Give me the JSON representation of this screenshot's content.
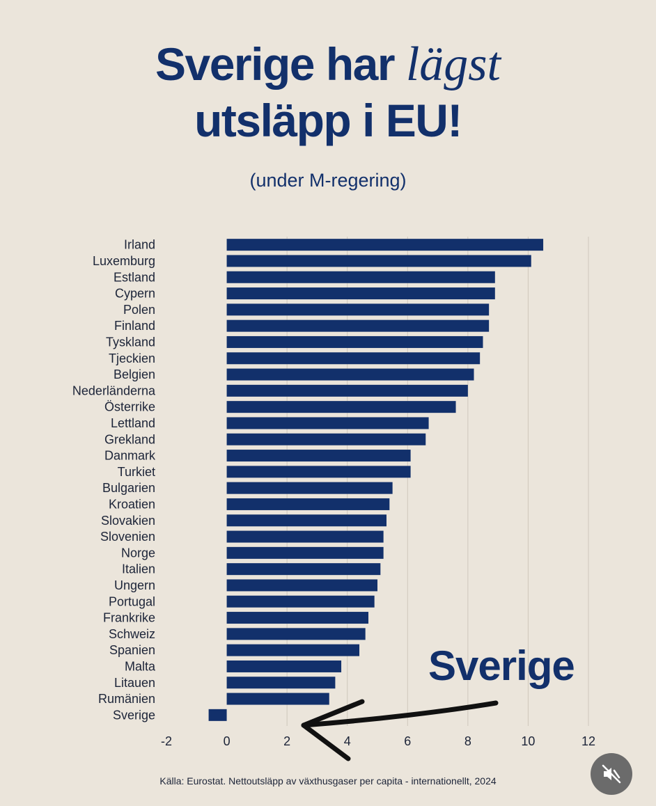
{
  "header": {
    "title_part1": "Sverige har ",
    "title_emph": "lägst",
    "title_part2": "utsläpp i EU!",
    "subtitle": "(under M-regering)"
  },
  "callout": {
    "label": "Sverige"
  },
  "footer": {
    "source": "Källa: Eurostat. Nettoutsläpp av växthusgaser per capita - internationellt, 2024"
  },
  "controls": {
    "mute_icon": "speaker-muted-icon"
  },
  "colors": {
    "bar": "#12306b",
    "background": "#ebe5db",
    "grid": "#cfc8bc",
    "text": "#1c2438"
  },
  "chart_data": {
    "type": "bar",
    "orientation": "horizontal",
    "categories": [
      "Irland",
      "Luxemburg",
      "Estland",
      "Cypern",
      "Polen",
      "Finland",
      "Tyskland",
      "Tjeckien",
      "Belgien",
      "Nederländerna",
      "Österrike",
      "Lettland",
      "Grekland",
      "Danmark",
      "Turkiet",
      "Bulgarien",
      "Kroatien",
      "Slovakien",
      "Slovenien",
      "Norge",
      "Italien",
      "Ungern",
      "Portugal",
      "Frankrike",
      "Schweiz",
      "Spanien",
      "Malta",
      "Litauen",
      "Rumänien",
      "Sverige"
    ],
    "values": [
      10.5,
      10.1,
      8.9,
      8.9,
      8.7,
      8.7,
      8.5,
      8.4,
      8.2,
      8.0,
      7.6,
      6.7,
      6.6,
      6.1,
      6.1,
      5.5,
      5.4,
      5.3,
      5.2,
      5.2,
      5.1,
      5.0,
      4.9,
      4.7,
      4.6,
      4.4,
      3.8,
      3.6,
      3.4,
      -0.6
    ],
    "xlim": [
      -2,
      12
    ],
    "xticks": [
      -2,
      0,
      2,
      4,
      6,
      8,
      10,
      12
    ],
    "grid": true
  }
}
